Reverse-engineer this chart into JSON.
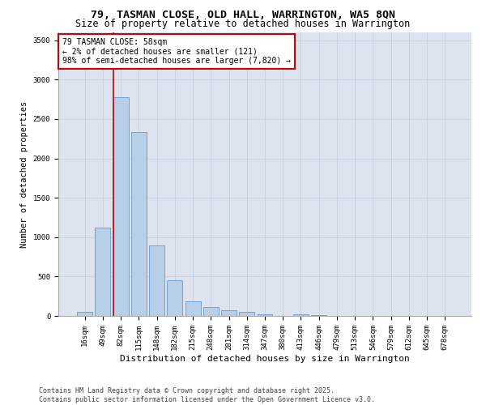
{
  "title1": "79, TASMAN CLOSE, OLD HALL, WARRINGTON, WA5 8QN",
  "title2": "Size of property relative to detached houses in Warrington",
  "xlabel": "Distribution of detached houses by size in Warrington",
  "ylabel": "Number of detached properties",
  "bar_color": "#b8cfe8",
  "bar_edge_color": "#6699cc",
  "grid_color": "#c8d4e4",
  "bg_color": "#dde4ef",
  "annotation_text": "79 TASMAN CLOSE: 58sqm\n← 2% of detached houses are smaller (121)\n98% of semi-detached houses are larger (7,820) →",
  "annotation_box_color": "#ffffff",
  "annotation_border_color": "#cc0000",
  "vline_color": "#cc0000",
  "categories": [
    "16sqm",
    "49sqm",
    "82sqm",
    "115sqm",
    "148sqm",
    "182sqm",
    "215sqm",
    "248sqm",
    "281sqm",
    "314sqm",
    "347sqm",
    "380sqm",
    "413sqm",
    "446sqm",
    "479sqm",
    "513sqm",
    "546sqm",
    "579sqm",
    "612sqm",
    "645sqm",
    "678sqm"
  ],
  "values": [
    50,
    1120,
    2780,
    2340,
    890,
    450,
    185,
    115,
    75,
    55,
    20,
    5,
    25,
    10,
    5,
    3,
    2,
    1,
    1,
    0,
    2
  ],
  "ylim": [
    0,
    3600
  ],
  "yticks": [
    0,
    500,
    1000,
    1500,
    2000,
    2500,
    3000,
    3500
  ],
  "footer": "Contains HM Land Registry data © Crown copyright and database right 2025.\nContains public sector information licensed under the Open Government Licence v3.0.",
  "title1_fontsize": 9.5,
  "title2_fontsize": 8.5,
  "xlabel_fontsize": 8,
  "ylabel_fontsize": 7.5,
  "tick_fontsize": 6.5,
  "annotation_fontsize": 7,
  "footer_fontsize": 6
}
